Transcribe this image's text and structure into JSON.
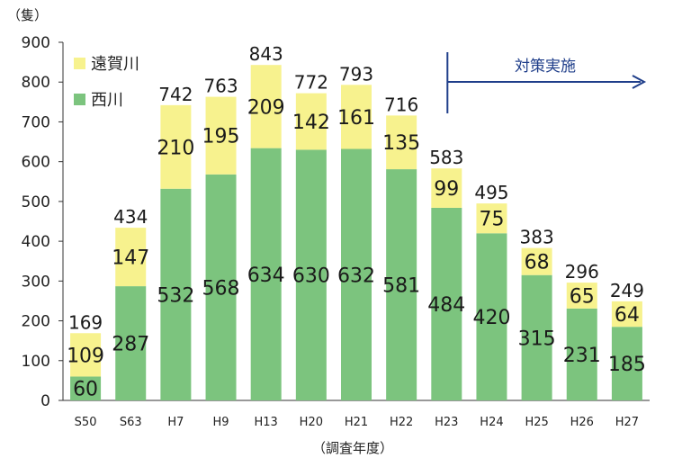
{
  "chart_data": {
    "type": "bar",
    "stacked": true,
    "unit_label": "（隻）",
    "xlabel": "（調査年度）",
    "ylim": [
      0,
      900
    ],
    "yticks": [
      0,
      100,
      200,
      300,
      400,
      500,
      600,
      700,
      800,
      900
    ],
    "categories": [
      "S50",
      "S63",
      "H7",
      "H9",
      "H13",
      "H20",
      "H21",
      "H22",
      "H23",
      "H24",
      "H25",
      "H26",
      "H27"
    ],
    "series": [
      {
        "name": "西川",
        "color": "#7cc47e",
        "values": [
          60,
          287,
          532,
          568,
          634,
          630,
          632,
          581,
          484,
          420,
          315,
          231,
          185
        ]
      },
      {
        "name": "遠賀川",
        "color": "#f7f28e",
        "values": [
          109,
          147,
          210,
          195,
          209,
          142,
          161,
          135,
          99,
          75,
          68,
          65,
          64
        ]
      }
    ],
    "totals": [
      169,
      434,
      742,
      763,
      843,
      772,
      793,
      716,
      583,
      495,
      383,
      296,
      249
    ],
    "legend_position": "top-left",
    "annotation": {
      "text": "対策実施",
      "from_category": "H23",
      "color": "#1f3e8a"
    }
  }
}
